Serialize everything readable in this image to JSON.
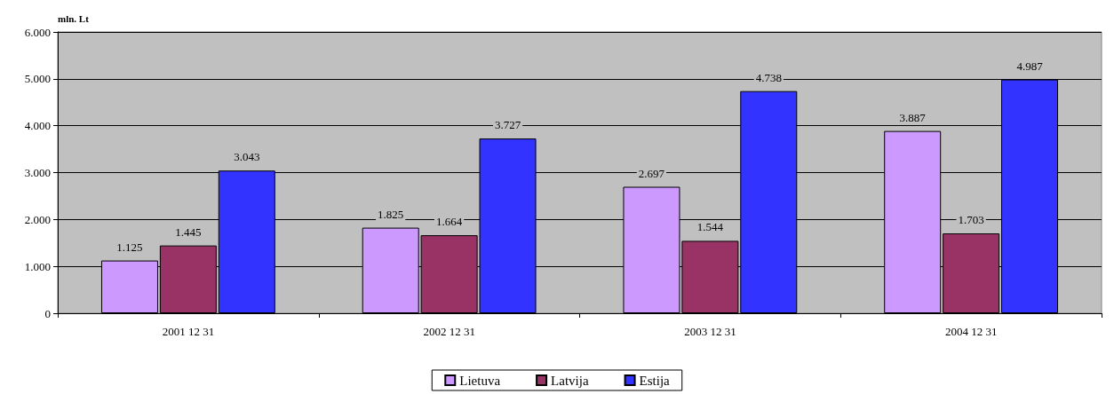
{
  "chart_data": {
    "type": "bar",
    "ylabel": "mln. Lt",
    "categories": [
      "2001 12 31",
      "2002 12 31",
      "2003 12 31",
      "2004 12 31"
    ],
    "series": [
      {
        "name": "Lietuva",
        "color": "#cc99ff",
        "values": [
          1125,
          1825,
          2697,
          3887
        ],
        "value_labels": [
          "1.125",
          "1.825",
          "2.697",
          "3.887"
        ]
      },
      {
        "name": "Latvija",
        "color": "#993366",
        "values": [
          1445,
          1664,
          1544,
          1703
        ],
        "value_labels": [
          "1.445",
          "1.664",
          "1.544",
          "1.703"
        ]
      },
      {
        "name": "Estija",
        "color": "#3333ff",
        "values": [
          3043,
          3727,
          4738,
          4987
        ],
        "value_labels": [
          "3.043",
          "3.727",
          "4.738",
          "4.987"
        ]
      }
    ],
    "ylim": [
      0,
      6000
    ],
    "yticks": [
      {
        "value": 0,
        "label": "0"
      },
      {
        "value": 1000,
        "label": "1.000"
      },
      {
        "value": 2000,
        "label": "2.000"
      },
      {
        "value": 3000,
        "label": "3.000"
      },
      {
        "value": 4000,
        "label": "4.000"
      },
      {
        "value": 5000,
        "label": "5.000"
      },
      {
        "value": 6000,
        "label": "6.000"
      }
    ],
    "grid": "y",
    "legend": "bottom"
  }
}
